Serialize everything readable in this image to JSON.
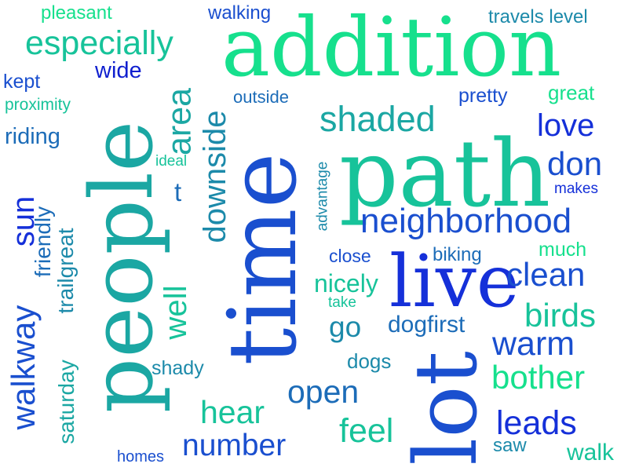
{
  "words": [
    "pleasant",
    "walking",
    "travels level",
    "especially",
    "addition",
    "kept",
    "wide",
    "proximity",
    "outside",
    "pretty",
    "great",
    "riding",
    "shaded",
    "love",
    "ideal",
    "path",
    "don",
    "makes",
    "t",
    "area",
    "downside",
    "people",
    "time",
    "sun",
    "friendly",
    "trailgreat",
    "walkway",
    "saturday",
    "well",
    "advantage",
    "neighborhood",
    "close",
    "biking",
    "much",
    "live",
    "clean",
    "nicely",
    "take",
    "birds",
    "go",
    "dogfirst",
    "warm",
    "shady",
    "dogs",
    "lot",
    "bother",
    "open",
    "hear",
    "feel",
    "leads",
    "number",
    "saw",
    "homes",
    "walk"
  ],
  "palette": [
    "#16e08d",
    "#17c39a",
    "#1ba7a3",
    "#1c8aaa",
    "#1c6cb8",
    "#1a4fcf",
    "#1530d9",
    "#0f1fcf"
  ]
}
